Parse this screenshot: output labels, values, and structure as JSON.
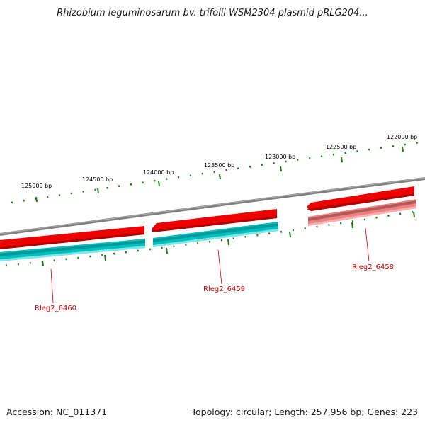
{
  "title": "Rhizobium leguminosarum bv. trifolii WSM2304 plasmid pRLG204...",
  "footer": {
    "accession": "Accession: NC_011371",
    "summary": "Topology: circular; Length: 257,956 bp; Genes: 223"
  },
  "ticks": [
    {
      "label": "125000 bp",
      "name": "tick-label-125000"
    },
    {
      "label": "124500 bp",
      "name": "tick-label-124500"
    },
    {
      "label": "124000 bp",
      "name": "tick-label-124000"
    },
    {
      "label": "123500 bp",
      "name": "tick-label-123500"
    },
    {
      "label": "123000 bp",
      "name": "tick-label-123000"
    },
    {
      "label": "122500 bp",
      "name": "tick-label-122500"
    },
    {
      "label": "122000 bp",
      "name": "tick-label-122000"
    }
  ],
  "genes": [
    {
      "label": "Rleg2_6460",
      "name": "gene-label-rleg2-6460"
    },
    {
      "label": "Rleg2_6459",
      "name": "gene-label-rleg2-6459"
    },
    {
      "label": "Rleg2_6458",
      "name": "gene-label-rleg2-6458"
    }
  ],
  "colors": {
    "backbone": "#808080",
    "cds_forward": "#ee0000",
    "cds_light": "#f08080",
    "gene_bar": "#00bfbf",
    "tick": "#1a7a1a",
    "label": "#cc0000"
  }
}
